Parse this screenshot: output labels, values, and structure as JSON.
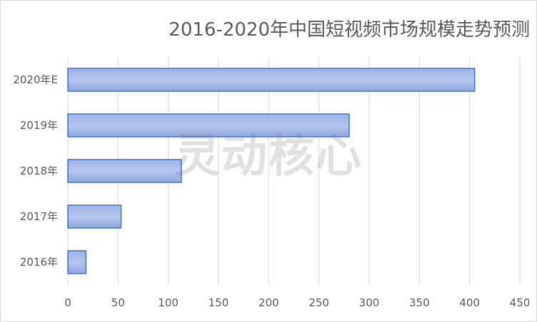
{
  "chart_data": {
    "type": "bar",
    "orientation": "horizontal",
    "title": "2016-2020年中国短视频市场规模走势预测",
    "categories": [
      "2020年E",
      "2019年",
      "2018年",
      "2017年",
      "2016年"
    ],
    "values": [
      405,
      280,
      113,
      53,
      18
    ],
    "xlim": [
      0,
      450
    ],
    "xticks": [
      0,
      50,
      100,
      150,
      200,
      250,
      300,
      350,
      400,
      450
    ],
    "xlabel": "",
    "ylabel": "",
    "grid": true,
    "bar_color": "#a4b7ea",
    "bar_edge_color": "#4472c4",
    "legend": "none"
  },
  "watermark": "灵动核心"
}
